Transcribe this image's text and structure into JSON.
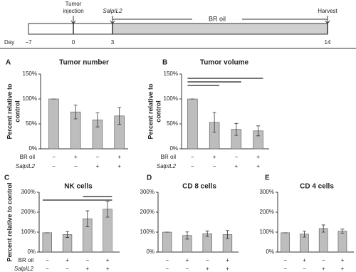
{
  "timeline": {
    "axis_label": "Day",
    "days": [
      "−7",
      "0",
      "3",
      "14"
    ],
    "events": [
      "Tumor injection",
      "SalpIL2",
      "Harvest"
    ],
    "treatment": "BR oil"
  },
  "chart_data": [
    {
      "type": "bar",
      "panel": "A",
      "title": "Tumor number",
      "ylabel": [
        "Percent relative to",
        "control"
      ],
      "color": "#bdbdbd",
      "values": [
        100,
        74,
        58,
        66
      ],
      "errors": [
        0,
        14,
        14,
        17
      ],
      "ylim": [
        0,
        150
      ],
      "yticks": [
        {
          "value": 0,
          "label": "0%"
        },
        {
          "value": 50,
          "label": "50%"
        },
        {
          "value": 100,
          "label": "100%"
        },
        {
          "value": 150,
          "label": "150%"
        }
      ],
      "row_labels": [
        "BR oil",
        "SalpIL2"
      ],
      "rows": [
        [
          "−",
          "+",
          "−",
          "+"
        ],
        [
          "−",
          "−",
          "+",
          "+"
        ]
      ],
      "comparisons": []
    },
    {
      "type": "bar",
      "panel": "B",
      "title": "Tumor volume",
      "ylabel": [
        "Percent relative to",
        "control"
      ],
      "color": "#bdbdbd",
      "values": [
        100,
        53,
        39,
        36
      ],
      "errors": [
        0,
        20,
        12,
        10
      ],
      "ylim": [
        0,
        150
      ],
      "yticks": [
        {
          "value": 0,
          "label": "0%"
        },
        {
          "value": 50,
          "label": "50%"
        },
        {
          "value": 100,
          "label": "100%"
        },
        {
          "value": 150,
          "label": "150%"
        }
      ],
      "row_labels": [
        "BR oil",
        "SalpIL2"
      ],
      "rows": [
        [
          "−",
          "+",
          "−",
          "+"
        ],
        [
          "−",
          "−",
          "+",
          "+"
        ]
      ],
      "comparisons": [
        [
          0,
          3
        ],
        [
          0,
          2
        ],
        [
          0,
          1
        ]
      ]
    },
    {
      "type": "bar",
      "panel": "C",
      "title": "NK cells",
      "ylabel": [
        "Percent relative to control"
      ],
      "color": "#bdbdbd",
      "values": [
        97,
        88,
        167,
        215
      ],
      "errors": [
        0,
        15,
        40,
        40
      ],
      "ylim": [
        0,
        300
      ],
      "yticks": [
        {
          "value": 0,
          "label": "0%"
        },
        {
          "value": 100,
          "label": "100%"
        },
        {
          "value": 200,
          "label": "200%"
        },
        {
          "value": 300,
          "label": "300%"
        }
      ],
      "row_labels": [
        "BR oil",
        "SalpIL2"
      ],
      "rows": [
        [
          "−",
          "+",
          "−",
          "+"
        ],
        [
          "−",
          "−",
          "+",
          "+"
        ]
      ],
      "comparisons": [
        [
          2,
          3
        ],
        [
          0,
          3
        ]
      ]
    },
    {
      "type": "bar",
      "panel": "D",
      "title": "CD 8 cells",
      "ylabel": [],
      "color": "#bdbdbd",
      "values": [
        100,
        83,
        92,
        88
      ],
      "errors": [
        0,
        18,
        14,
        20
      ],
      "ylim": [
        0,
        300
      ],
      "yticks": [
        {
          "value": 0,
          "label": "0%"
        },
        {
          "value": 100,
          "label": "100%"
        },
        {
          "value": 200,
          "label": "200%"
        },
        {
          "value": 300,
          "label": "300%"
        }
      ],
      "row_labels": [],
      "rows": [
        [
          "−",
          "+",
          "−",
          "+"
        ],
        [
          "−",
          "−",
          "+",
          "+"
        ]
      ],
      "comparisons": []
    },
    {
      "type": "bar",
      "panel": "E",
      "title": "CD 4 cells",
      "ylabel": [],
      "color": "#bdbdbd",
      "values": [
        97,
        90,
        118,
        105
      ],
      "errors": [
        0,
        15,
        18,
        10
      ],
      "ylim": [
        0,
        300
      ],
      "yticks": [
        {
          "value": 0,
          "label": "0%"
        },
        {
          "value": 100,
          "label": "100%"
        },
        {
          "value": 200,
          "label": "200%"
        },
        {
          "value": 300,
          "label": "300%"
        }
      ],
      "row_labels": [],
      "rows": [
        [
          "−",
          "+",
          "−",
          "+"
        ],
        [
          "−",
          "−",
          "+",
          "+"
        ]
      ],
      "comparisons": []
    }
  ]
}
